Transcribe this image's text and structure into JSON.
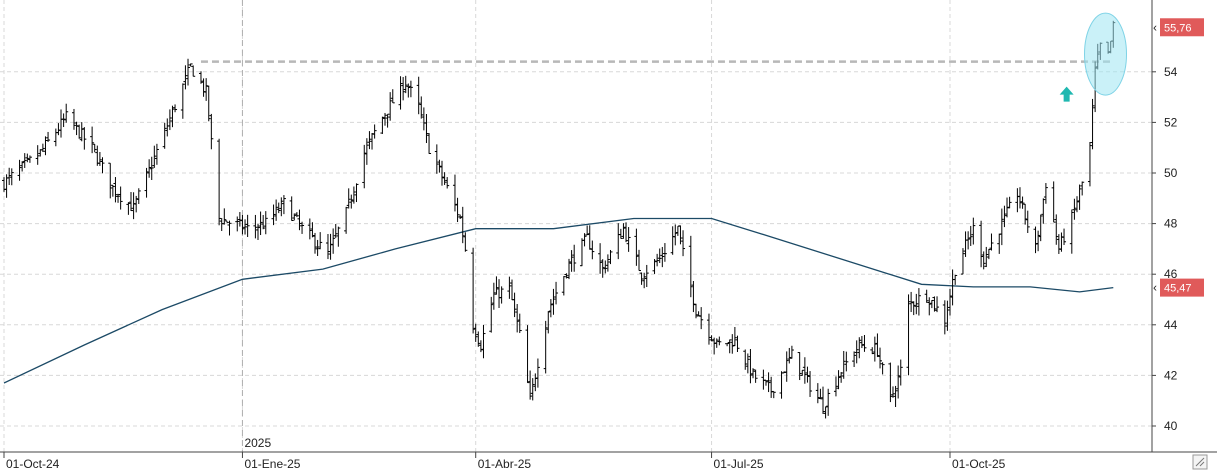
{
  "chart_data": {
    "type": "ohlc",
    "title": "",
    "xlabel": "",
    "ylabel": "",
    "ylim": [
      39,
      56.5
    ],
    "y_ticks": [
      "40",
      "42",
      "44",
      "46",
      "48",
      "50",
      "52",
      "54"
    ],
    "x_ticks": [
      {
        "label": "01-Oct-24",
        "date": "2024-10-01"
      },
      {
        "label": "01-Ene-25",
        "date": "2025-01-01"
      },
      {
        "label": "01-Abr-25",
        "date": "2025-04-01"
      },
      {
        "label": "01-Jul-25",
        "date": "2025-07-01"
      },
      {
        "label": "01-Oct-25",
        "date": "2025-10-01"
      }
    ],
    "year_marker": {
      "label": "2025",
      "date": "2025-01-01"
    },
    "date_range": [
      "2024-10-01",
      "2025-11-21"
    ],
    "grid": true,
    "price_series": {
      "close_keypoints": [
        [
          "2024-10-01",
          49.6
        ],
        [
          "2024-10-15",
          50.8
        ],
        [
          "2024-10-25",
          52.2
        ],
        [
          "2024-11-04",
          51.0
        ],
        [
          "2024-11-12",
          49.4
        ],
        [
          "2024-11-20",
          48.6
        ],
        [
          "2024-11-28",
          50.6
        ],
        [
          "2024-12-05",
          52.4
        ],
        [
          "2024-12-12",
          54.2
        ],
        [
          "2024-12-18",
          53.2
        ],
        [
          "2024-12-23",
          48.2
        ],
        [
          "2025-01-03",
          47.8
        ],
        [
          "2025-01-10",
          48.0
        ],
        [
          "2025-01-17",
          48.8
        ],
        [
          "2025-01-24",
          47.8
        ],
        [
          "2025-02-03",
          46.8
        ],
        [
          "2025-02-10",
          48.4
        ],
        [
          "2025-02-17",
          50.8
        ],
        [
          "2025-02-24",
          52.2
        ],
        [
          "2025-03-05",
          53.6
        ],
        [
          "2025-03-10",
          52.6
        ],
        [
          "2025-03-14",
          51.0
        ],
        [
          "2025-03-21",
          49.4
        ],
        [
          "2025-03-26",
          48.2
        ],
        [
          "2025-03-28",
          47.0
        ],
        [
          "2025-03-31",
          44.0
        ],
        [
          "2025-04-03",
          43.2
        ],
        [
          "2025-04-08",
          45.2
        ],
        [
          "2025-04-14",
          45.4
        ],
        [
          "2025-04-18",
          43.6
        ],
        [
          "2025-04-22",
          41.0
        ],
        [
          "2025-04-29",
          44.6
        ],
        [
          "2025-05-07",
          46.4
        ],
        [
          "2025-05-14",
          47.4
        ],
        [
          "2025-05-20",
          46.2
        ],
        [
          "2025-05-28",
          47.8
        ],
        [
          "2025-06-04",
          46.0
        ],
        [
          "2025-06-11",
          46.6
        ],
        [
          "2025-06-18",
          47.8
        ],
        [
          "2025-06-20",
          46.8
        ],
        [
          "2025-06-25",
          44.6
        ],
        [
          "2025-07-03",
          43.2
        ],
        [
          "2025-07-10",
          43.4
        ],
        [
          "2025-07-17",
          42.0
        ],
        [
          "2025-07-24",
          41.4
        ],
        [
          "2025-08-01",
          42.8
        ],
        [
          "2025-08-08",
          41.6
        ],
        [
          "2025-08-13",
          40.8
        ],
        [
          "2025-08-20",
          42.2
        ],
        [
          "2025-08-27",
          43.2
        ],
        [
          "2025-09-03",
          43.0
        ],
        [
          "2025-09-08",
          41.0
        ],
        [
          "2025-09-12",
          42.2
        ],
        [
          "2025-09-15",
          44.8
        ],
        [
          "2025-09-22",
          45.2
        ],
        [
          "2025-09-29",
          44.2
        ],
        [
          "2025-10-03",
          46.2
        ],
        [
          "2025-10-10",
          47.8
        ],
        [
          "2025-10-14",
          46.6
        ],
        [
          "2025-10-20",
          47.8
        ],
        [
          "2025-10-27",
          49.2
        ],
        [
          "2025-11-03",
          47.0
        ],
        [
          "2025-11-07",
          49.6
        ],
        [
          "2025-11-12",
          47.0
        ],
        [
          "2025-11-17",
          48.2
        ],
        [
          "2025-11-21",
          49.6
        ],
        [
          "2025-11-24",
          51.0
        ],
        [
          "2025-11-26",
          54.0
        ],
        [
          "2025-11-28",
          55.0
        ],
        [
          "2025-12-01",
          54.6
        ],
        [
          "2025-12-03",
          55.76
        ]
      ]
    },
    "moving_average": {
      "label": "45,47",
      "keypoints": [
        [
          "2024-10-01",
          41.7
        ],
        [
          "2024-11-01",
          43.2
        ],
        [
          "2024-12-01",
          44.6
        ],
        [
          "2025-01-01",
          45.8
        ],
        [
          "2025-02-01",
          46.2
        ],
        [
          "2025-03-01",
          47.0
        ],
        [
          "2025-04-01",
          47.8
        ],
        [
          "2025-05-01",
          47.8
        ],
        [
          "2025-06-01",
          48.2
        ],
        [
          "2025-07-01",
          48.2
        ],
        [
          "2025-07-20",
          47.6
        ],
        [
          "2025-08-20",
          46.6
        ],
        [
          "2025-09-20",
          45.6
        ],
        [
          "2025-10-10",
          45.5
        ],
        [
          "2025-11-01",
          45.5
        ],
        [
          "2025-11-20",
          45.3
        ],
        [
          "2025-12-03",
          45.47
        ]
      ]
    },
    "resistance_line": {
      "value": 54.4,
      "from": "2024-12-16",
      "to": "2025-12-03"
    },
    "current_price_label": "55,76",
    "current_price_value": 55.76,
    "ma_label": "45,47",
    "ma_value": 45.47,
    "annotations": [
      {
        "type": "arrow-up",
        "date": "2025-11-15",
        "value": 53.1,
        "color": "#1fb8b0"
      },
      {
        "type": "highlight-ellipse",
        "date": "2025-11-30",
        "value": 54.7,
        "color": "#9ee5f2"
      }
    ],
    "colors": {
      "price": "#000000",
      "moving_average": "#1c4a66",
      "resistance": "#b8b8b8",
      "price_tag": "#e05a5a",
      "ma_tag": "#e05a5a",
      "grid": "#d8d8d8"
    }
  }
}
